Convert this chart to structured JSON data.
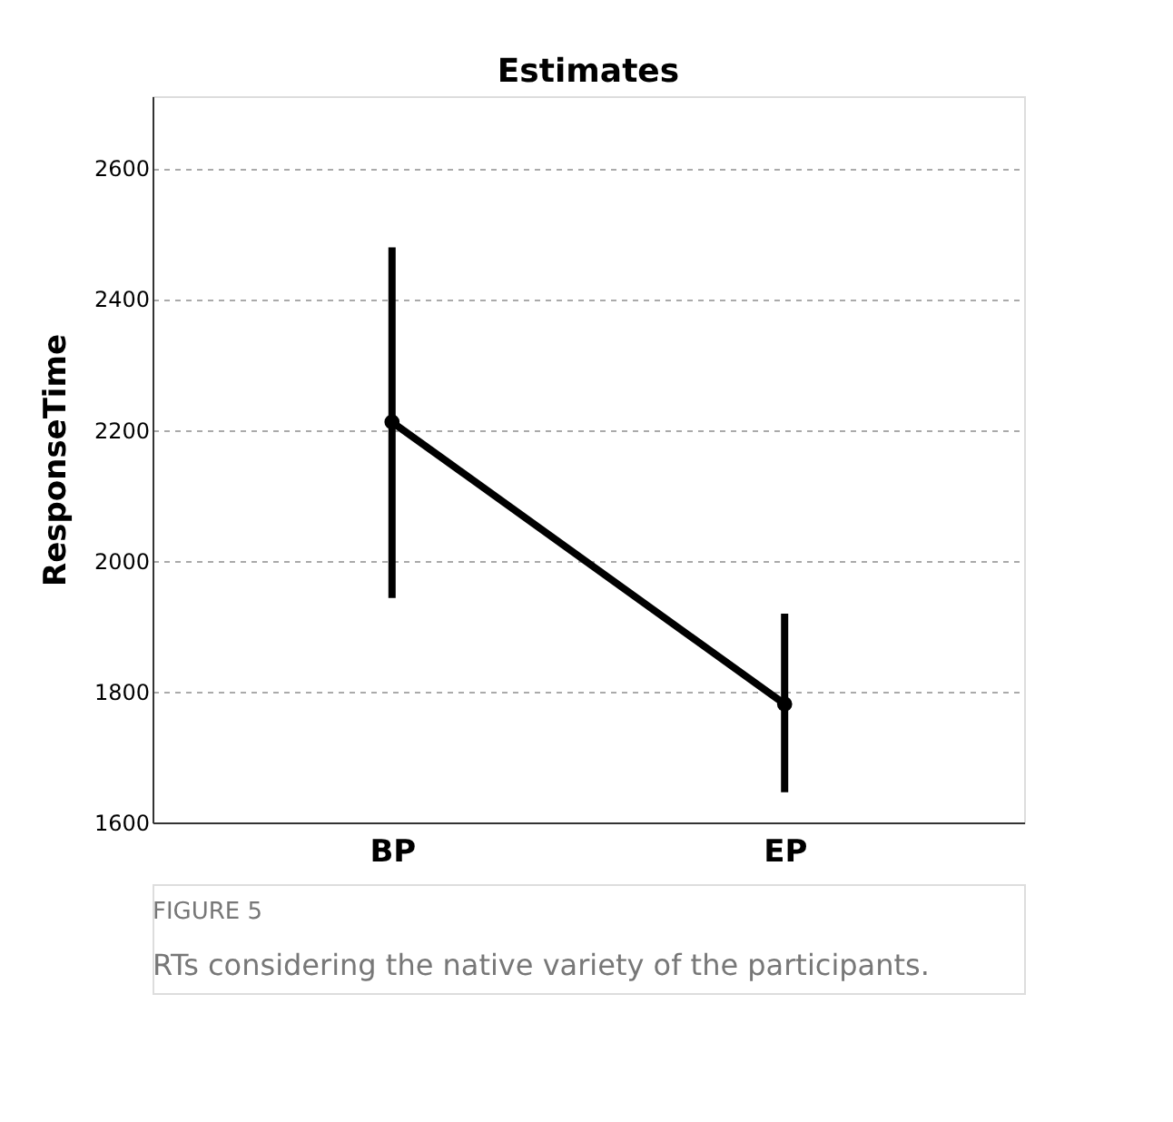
{
  "chart_data": {
    "type": "line",
    "title": "Estimates",
    "ylabel": "ResponseTime",
    "categories": [
      "BP",
      "EP"
    ],
    "series": [
      {
        "color": "#000000",
        "values": [
          2212,
          1781
        ],
        "errors": [
          [
            1943,
            2479
          ],
          [
            1646,
            1919
          ]
        ]
      }
    ],
    "ylim": [
      1600,
      2710
    ],
    "yticks": [
      1600,
      1800,
      2000,
      2200,
      2400,
      2600
    ],
    "grid": "y",
    "marker": "circle",
    "line_style": "solid",
    "annotations": [
      "FIGURE 5",
      "RTs considering the native variety of the participants."
    ]
  }
}
